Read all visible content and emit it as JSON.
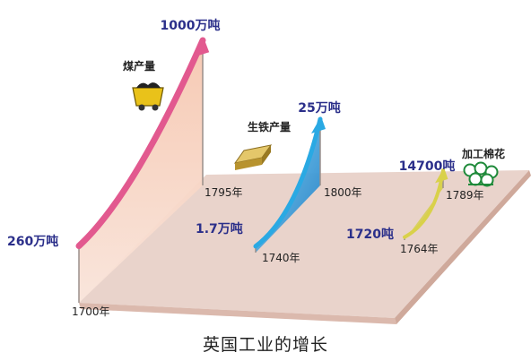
{
  "caption": "英国工业的增长",
  "colors": {
    "floor": "#e9d3cb",
    "coal": "#e2598f",
    "iron": "#2aa9e3",
    "cotton": "#d9d14a",
    "value_text": "#2b2f8a"
  },
  "icons": [
    "coal-cart-icon",
    "iron-ingot-icon",
    "cotton-boll-icon"
  ],
  "chart_data": {
    "type": "area",
    "title": "英国工业的增长",
    "series": [
      {
        "name": "煤产量",
        "unit": "万吨",
        "x": [
          1700,
          1795
        ],
        "values": [
          260,
          1000
        ],
        "start_label": "260万吨",
        "end_label": "1000万吨",
        "start_year_label": "1700年",
        "end_year_label": "1795年"
      },
      {
        "name": "生铁产量",
        "unit": "万吨",
        "x": [
          1740,
          1800
        ],
        "values": [
          1.7,
          25
        ],
        "start_label": "1.7万吨",
        "end_label": "25万吨",
        "start_year_label": "1740年",
        "end_year_label": "1800年"
      },
      {
        "name": "加工棉花",
        "unit": "吨",
        "x": [
          1764,
          1789
        ],
        "values": [
          1720,
          14700
        ],
        "start_label": "1720吨",
        "end_label": "14700吨",
        "start_year_label": "1764年",
        "end_year_label": "1789年"
      }
    ]
  }
}
